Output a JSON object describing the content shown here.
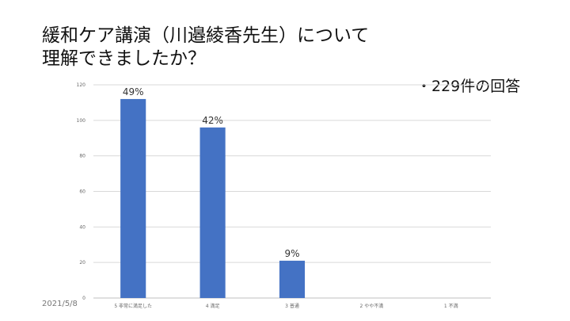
{
  "slide": {
    "title_lines": [
      "緩和ケア講演（川邉綾香先生）について",
      "理解できましたか？"
    ],
    "response_count": "・229件の回答",
    "date": "2021/5/8"
  },
  "chart_data": {
    "type": "bar",
    "categories": [
      "5 非常に満足した",
      "4 満足",
      "3 普通",
      "2 やや不満",
      "1 不満"
    ],
    "values": [
      112,
      96,
      21,
      0,
      0
    ],
    "data_labels": [
      "49%",
      "42%",
      "9%",
      "",
      ""
    ],
    "ylim": [
      0,
      120
    ],
    "yticks": [
      "0",
      "20",
      "40",
      "60",
      "80",
      "100",
      "120"
    ],
    "grid": true,
    "bar_color": "#4472C4"
  }
}
